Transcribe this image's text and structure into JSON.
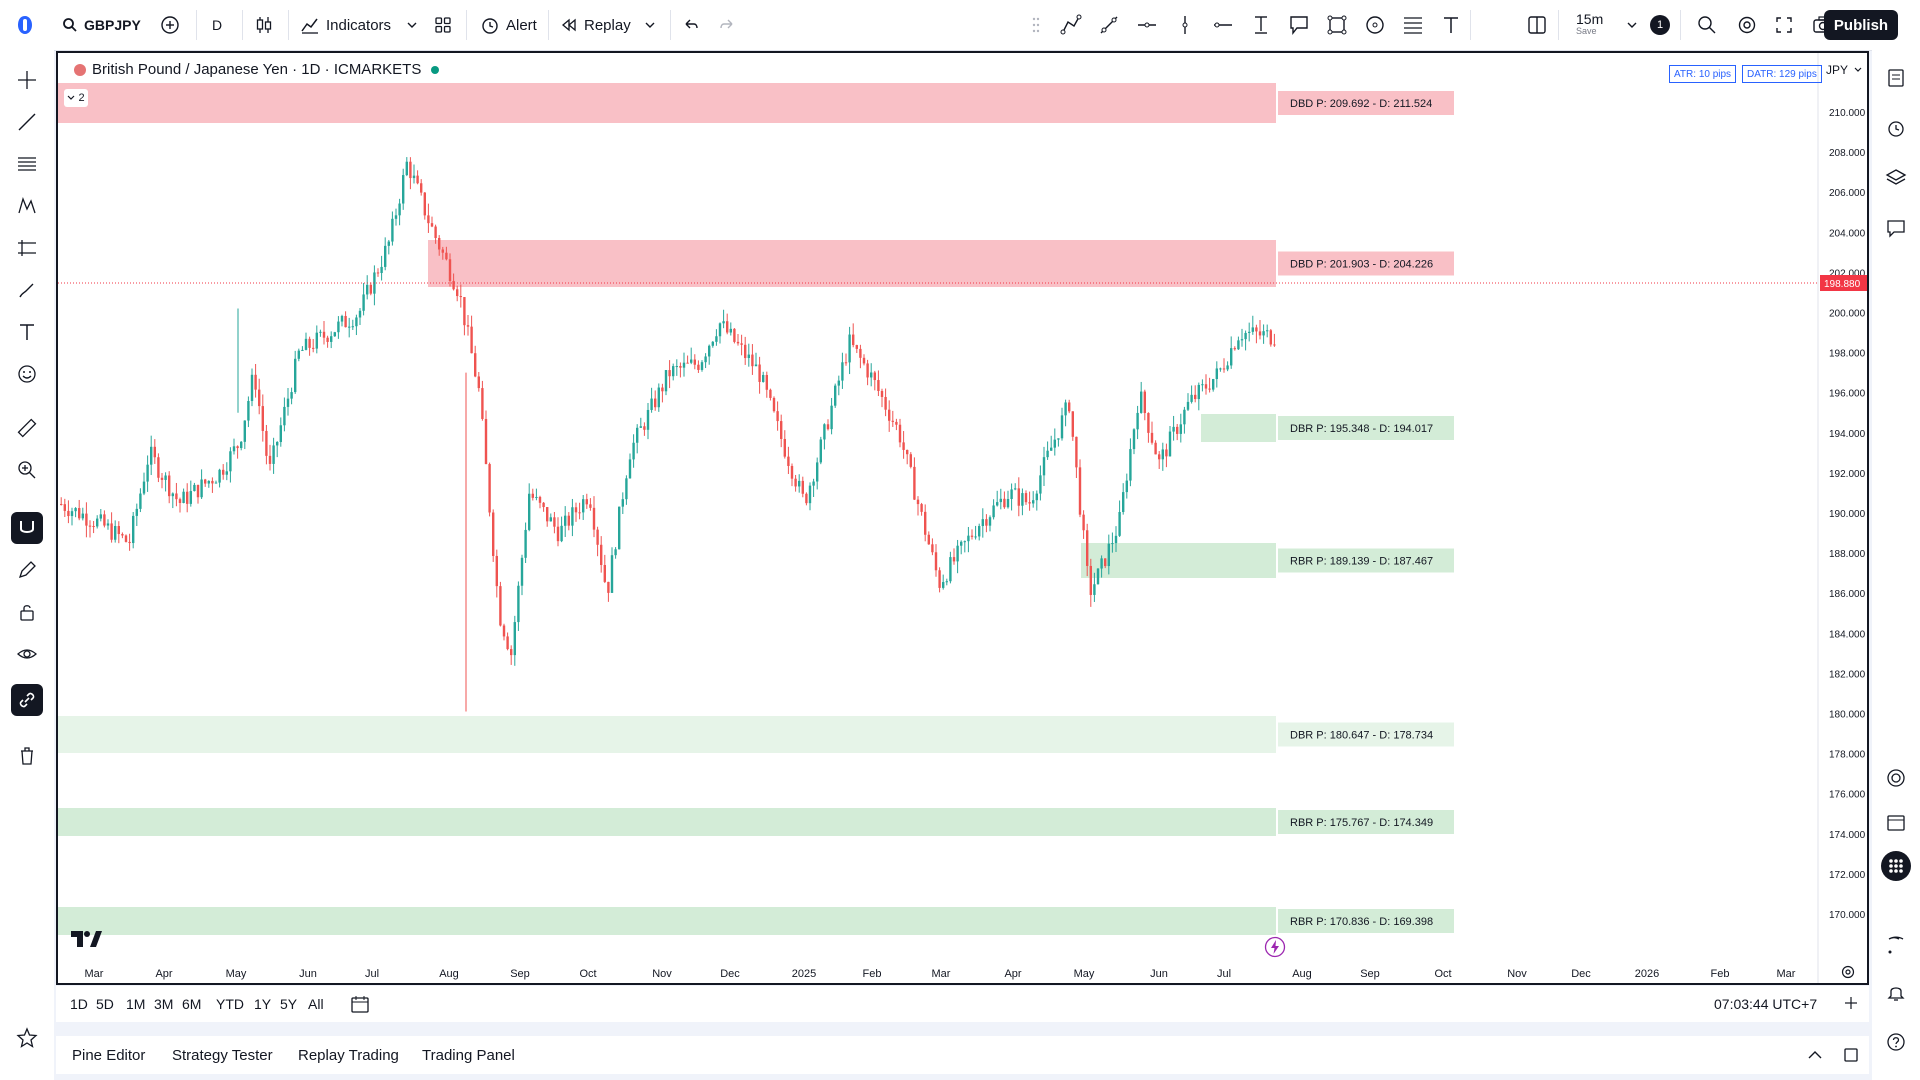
{
  "topbar": {
    "symbol": "GBPJPY",
    "interval": "D",
    "indicators_label": "Indicators",
    "alert_label": "Alert",
    "replay_label": "Replay",
    "timeframe": "15m",
    "timeframe_sub": "Save",
    "notification_count": "1",
    "publish_label": "Publish"
  },
  "chart": {
    "title": "British Pound / Japanese Yen · 1D · ICMARKETS",
    "collapse_count": "2",
    "atr_badge": "ATR: 10 pips",
    "datr_badge": "DATR: 129 pips",
    "currency": "JPY",
    "current_price": "198.880",
    "time_labels": [
      "Mar",
      "Apr",
      "May",
      "Jun",
      "Jul",
      "Aug",
      "Sep",
      "Oct",
      "Nov",
      "Dec",
      "2025",
      "Feb",
      "Mar",
      "Apr",
      "May",
      "Jun",
      "Jul",
      "Aug",
      "Sep",
      "Oct",
      "Nov",
      "Dec",
      "2026",
      "Feb",
      "Mar"
    ],
    "price_labels": [
      "210.000",
      "208.000",
      "206.000",
      "204.000",
      "202.000",
      "200.000",
      "198.000",
      "196.000",
      "194.000",
      "192.000",
      "190.000",
      "188.000",
      "186.000",
      "184.000",
      "182.000",
      "180.000",
      "178.000",
      "176.000",
      "174.000",
      "172.000",
      "170.000"
    ],
    "zones": [
      {
        "label": "DBD P: 209.692 - D: 211.524",
        "type": "supply"
      },
      {
        "label": "DBD P: 201.903 - D: 204.226",
        "type": "supply"
      },
      {
        "label": "DBR P: 195.348 - D: 194.017",
        "type": "demand"
      },
      {
        "label": "RBR P: 189.139 - D: 187.467",
        "type": "demand"
      },
      {
        "label": "DBR P: 180.647 - D: 178.734",
        "type": "demand-light"
      },
      {
        "label": "RBR P: 175.767 - D: 174.349",
        "type": "demand"
      },
      {
        "label": "RBR P: 170.836 - D: 169.398",
        "type": "demand"
      }
    ],
    "colors": {
      "up": "#26a69a",
      "down": "#ef5350",
      "supply": "#f9c0c6",
      "demand": "#d3ecd7",
      "demand_light": "#e6f4e8",
      "price_tag": "#f23645"
    }
  },
  "bottombar": {
    "ranges": [
      "1D",
      "5D",
      "1M",
      "3M",
      "6M",
      "YTD",
      "1Y",
      "5Y",
      "All"
    ],
    "clock": "07:03:44 UTC+7"
  },
  "panels": {
    "tabs": [
      "Pine Editor",
      "Strategy Tester",
      "Replay Trading",
      "Trading Panel"
    ]
  }
}
